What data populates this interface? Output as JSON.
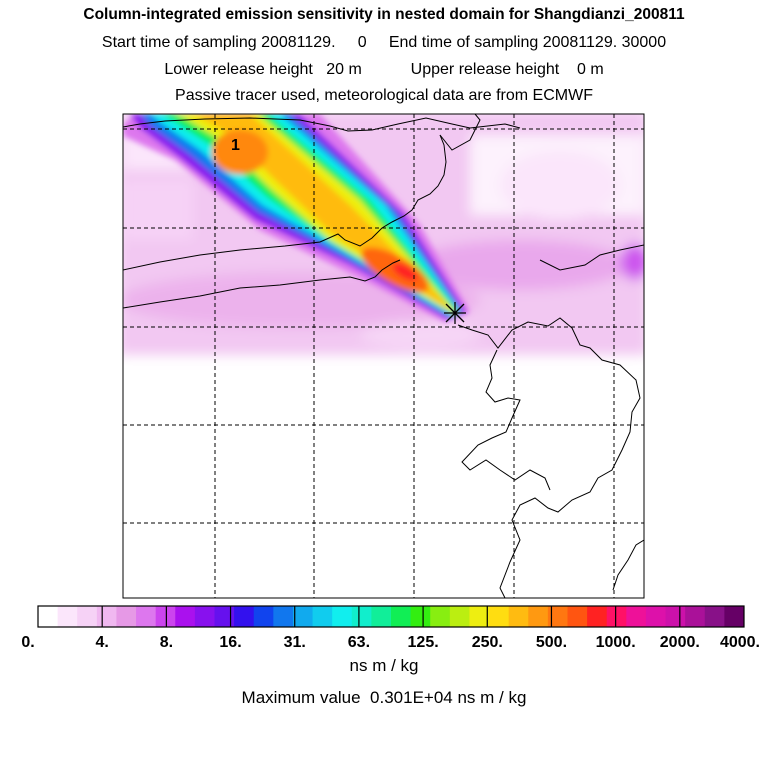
{
  "title": {
    "line1": "Column-integrated emission sensitivity in nested domain for Shangdianzi_200811",
    "line2": "Start time of sampling 20081129.     0     End time of sampling 20081129. 30000",
    "line3": "Lower release height   20 m           Upper release height    0 m",
    "line4": "Passive tracer used, meteorological data are from ECMWF"
  },
  "map": {
    "peak_marker_label": "1",
    "receptor_symbol": "✱"
  },
  "colorbar": {
    "tick_labels": [
      "0.",
      "4.",
      "8.",
      "16.",
      "31.",
      "63.",
      "125.",
      "250.",
      "500.",
      "1000.",
      "2000.",
      "4000."
    ],
    "colors": [
      "#ffffff",
      "#fbe6fb",
      "#f6d2f6",
      "#f0b8f0",
      "#e699e6",
      "#dd77ee",
      "#cc44ee",
      "#aa11ee",
      "#8811ee",
      "#6611ee",
      "#3311ee",
      "#1144ee",
      "#1177ee",
      "#11aaee",
      "#11ccee",
      "#11eeee",
      "#11eecc",
      "#11ee99",
      "#11ee55",
      "#33ee11",
      "#88ee11",
      "#bbee11",
      "#eeee11",
      "#ffdd11",
      "#ffbb11",
      "#ff9911",
      "#ff7711",
      "#ff5511",
      "#ff2222",
      "#ff1166",
      "#ee1199",
      "#dd11aa",
      "#cc11aa",
      "#aa1199",
      "#881188",
      "#660066"
    ],
    "units": "ns m / kg"
  },
  "footer": {
    "max_value_text": "Maximum value  0.301E+04 ns m / kg"
  }
}
